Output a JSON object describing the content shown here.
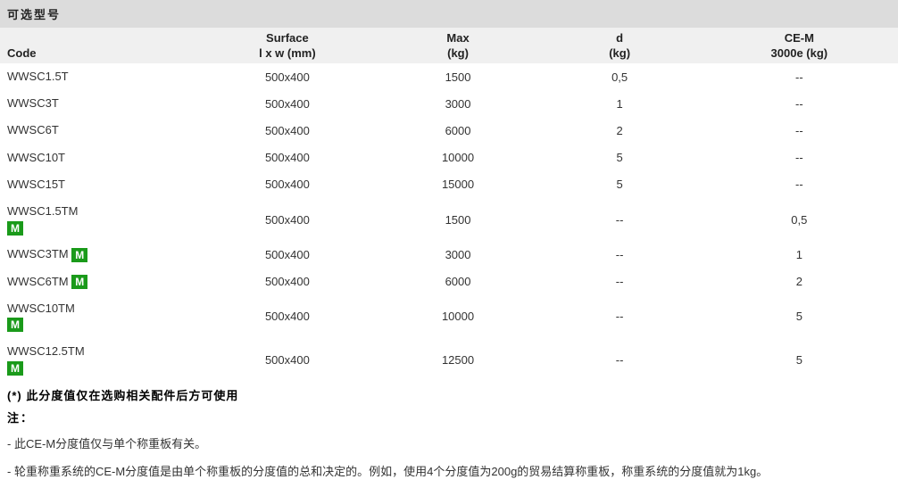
{
  "title": "可选型号",
  "headers": {
    "code": "Code",
    "surface_top": "Surface",
    "surface_bot": "l x w  (mm)",
    "max_top": "Max",
    "max_bot": "(kg)",
    "d_top": "d",
    "d_bot": "(kg)",
    "cem_top": "CE-M",
    "cem_bot": "3000e (kg)"
  },
  "rows": [
    {
      "code": "WWSC1.5T",
      "m": false,
      "mInline": false,
      "surface": "500x400",
      "max": "1500",
      "d": "0,5",
      "cem": "--"
    },
    {
      "code": "WWSC3T",
      "m": false,
      "mInline": false,
      "surface": "500x400",
      "max": "3000",
      "d": "1",
      "cem": "--"
    },
    {
      "code": "WWSC6T",
      "m": false,
      "mInline": false,
      "surface": "500x400",
      "max": "6000",
      "d": "2",
      "cem": "--"
    },
    {
      "code": "WWSC10T",
      "m": false,
      "mInline": false,
      "surface": "500x400",
      "max": "10000",
      "d": "5",
      "cem": "--"
    },
    {
      "code": "WWSC15T",
      "m": false,
      "mInline": false,
      "surface": "500x400",
      "max": "15000",
      "d": "5",
      "cem": "--"
    },
    {
      "code": "WWSC1.5TM",
      "m": true,
      "mInline": false,
      "surface": "500x400",
      "max": "1500",
      "d": "--",
      "cem": "0,5"
    },
    {
      "code": "WWSC3TM",
      "m": true,
      "mInline": true,
      "surface": "500x400",
      "max": "3000",
      "d": "--",
      "cem": "1"
    },
    {
      "code": "WWSC6TM",
      "m": true,
      "mInline": true,
      "surface": "500x400",
      "max": "6000",
      "d": "--",
      "cem": "2"
    },
    {
      "code": "WWSC10TM",
      "m": true,
      "mInline": false,
      "surface": "500x400",
      "max": "10000",
      "d": "--",
      "cem": "5"
    },
    {
      "code": "WWSC12.5TM",
      "m": true,
      "mInline": false,
      "surface": "500x400",
      "max": "12500",
      "d": "--",
      "cem": "5"
    }
  ],
  "mBadge": "M",
  "footnote": "(*) 此分度值仅在选购相关配件后方可使用",
  "notesHead": "注：",
  "notes": [
    "- 此CE-M分度值仅与单个称重板有关。",
    "- 轮重称重系统的CE-M分度值是由单个称重板的分度值的总和决定的。例如，使用4个分度值为200g的贸易结算称重板，称重系统的分度值就为1kg。"
  ],
  "style": {
    "titleBg": "#dcdcdc",
    "headBg": "#f0f0f0",
    "badgeBg": "#1a9a1a",
    "badgeFg": "#ffffff",
    "textColor": "#333333"
  }
}
